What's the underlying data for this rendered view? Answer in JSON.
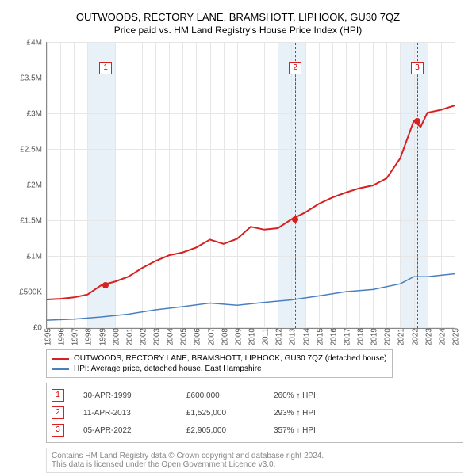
{
  "title": "OUTWOODS, RECTORY LANE, BRAMSHOTT, LIPHOOK, GU30 7QZ",
  "subtitle": "Price paid vs. HM Land Registry's House Price Index (HPI)",
  "chart": {
    "type": "line",
    "background_color": "#ffffff",
    "grid_color": "#e6e6e6",
    "band_color": "#e8f0f8",
    "x": {
      "min": 1995,
      "max": 2025,
      "ticks": [
        1995,
        1996,
        1997,
        1998,
        1999,
        2000,
        2001,
        2002,
        2003,
        2004,
        2005,
        2006,
        2007,
        2008,
        2009,
        2010,
        2011,
        2012,
        2013,
        2014,
        2015,
        2016,
        2017,
        2018,
        2019,
        2020,
        2021,
        2022,
        2023,
        2024,
        2025
      ]
    },
    "y": {
      "min": 0,
      "max": 4000000,
      "ticks": [
        0,
        500000,
        1000000,
        1500000,
        2000000,
        2500000,
        3000000,
        3500000,
        4000000
      ],
      "tick_labels": [
        "£0",
        "£500K",
        "£1M",
        "£1.5M",
        "£2M",
        "£2.5M",
        "£3M",
        "£3.5M",
        "£4M"
      ]
    },
    "bands": [
      {
        "from": 1998,
        "to": 2000
      },
      {
        "from": 2012,
        "to": 2014
      },
      {
        "from": 2021,
        "to": 2023
      }
    ],
    "series": [
      {
        "name": "property",
        "color": "#d82020",
        "width": 2,
        "label": "OUTWOODS, RECTORY LANE, BRAMSHOTT, LIPHOOK, GU30 7QZ (detached house)",
        "points": [
          [
            1995,
            400000
          ],
          [
            1996,
            410000
          ],
          [
            1997,
            430000
          ],
          [
            1998,
            470000
          ],
          [
            1999,
            600000
          ],
          [
            2000,
            650000
          ],
          [
            2001,
            720000
          ],
          [
            2002,
            840000
          ],
          [
            2003,
            940000
          ],
          [
            2004,
            1020000
          ],
          [
            2005,
            1060000
          ],
          [
            2006,
            1130000
          ],
          [
            2007,
            1240000
          ],
          [
            2008,
            1180000
          ],
          [
            2009,
            1250000
          ],
          [
            2010,
            1420000
          ],
          [
            2011,
            1380000
          ],
          [
            2012,
            1400000
          ],
          [
            2013,
            1525000
          ],
          [
            2014,
            1620000
          ],
          [
            2015,
            1740000
          ],
          [
            2016,
            1830000
          ],
          [
            2017,
            1900000
          ],
          [
            2018,
            1960000
          ],
          [
            2019,
            2000000
          ],
          [
            2020,
            2100000
          ],
          [
            2021,
            2380000
          ],
          [
            2022,
            2905000
          ],
          [
            2022.5,
            2820000
          ],
          [
            2023,
            3020000
          ],
          [
            2024,
            3060000
          ],
          [
            2025,
            3120000
          ]
        ]
      },
      {
        "name": "hpi",
        "color": "#4a7fbf",
        "width": 1.5,
        "label": "HPI: Average price, detached house, East Hampshire",
        "points": [
          [
            1995,
            110000
          ],
          [
            1997,
            125000
          ],
          [
            1999,
            155000
          ],
          [
            2001,
            195000
          ],
          [
            2003,
            255000
          ],
          [
            2005,
            300000
          ],
          [
            2007,
            350000
          ],
          [
            2009,
            320000
          ],
          [
            2011,
            360000
          ],
          [
            2013,
            395000
          ],
          [
            2015,
            450000
          ],
          [
            2017,
            510000
          ],
          [
            2019,
            540000
          ],
          [
            2021,
            620000
          ],
          [
            2022,
            720000
          ],
          [
            2023,
            720000
          ],
          [
            2024,
            740000
          ],
          [
            2025,
            760000
          ]
        ]
      }
    ],
    "transaction_markers": [
      {
        "n": "1",
        "year": 1999.33,
        "value": 600000,
        "color": "#d82020"
      },
      {
        "n": "2",
        "year": 2013.28,
        "value": 1525000,
        "color": "#d82020"
      },
      {
        "n": "3",
        "year": 2022.26,
        "value": 2905000,
        "color": "#d82020"
      }
    ],
    "marker_box_y_offset": 24
  },
  "legend": [
    {
      "color": "#d82020",
      "label_path": "chart.series.0.label"
    },
    {
      "color": "#4a7fbf",
      "label_path": "chart.series.1.label"
    }
  ],
  "transactions_table": {
    "rows": [
      {
        "n": "1",
        "date": "30-APR-1999",
        "price": "£600,000",
        "hpi": "260%",
        "hpi_suffix": "HPI",
        "color": "#d82020"
      },
      {
        "n": "2",
        "date": "11-APR-2013",
        "price": "£1,525,000",
        "hpi": "293%",
        "hpi_suffix": "HPI",
        "color": "#d82020"
      },
      {
        "n": "3",
        "date": "05-APR-2022",
        "price": "£2,905,000",
        "hpi": "357%",
        "hpi_suffix": "HPI",
        "color": "#d82020"
      }
    ]
  },
  "footnote_line1": "Contains HM Land Registry data © Crown copyright and database right 2024.",
  "footnote_line2": "This data is licensed under the Open Government Licence v3.0."
}
